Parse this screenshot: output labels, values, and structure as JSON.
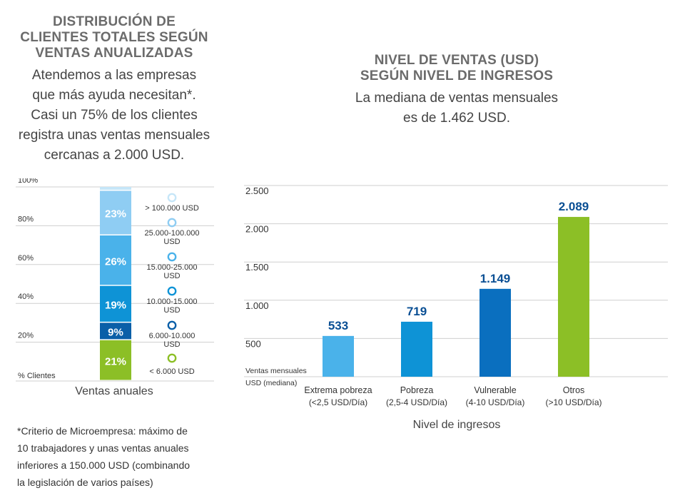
{
  "left": {
    "title_lines": [
      "DISTRIBUCIÓN DE",
      "CLIENTES TOTALES SEGÚN",
      "VENTAS ANUALIZADAS"
    ],
    "subtitle_lines": [
      "Atendemos a las empresas",
      "que más ayuda necesitan*.",
      "Casi un 75% de los clientes",
      "registra unas ventas mensuales",
      "cercanas a 2.000 USD."
    ],
    "xlabel": "Ventas anuales",
    "footnote_lines": [
      "*Criterio de Microempresa: máximo de",
      "10 trabajadores y unas ventas anuales",
      "inferiores a 150.000 USD (combinando",
      "la legislación de varios países)"
    ]
  },
  "right": {
    "title_lines": [
      "NIVEL DE VENTAS (USD)",
      "SEGÚN NIVEL DE INGRESOS"
    ],
    "subtitle_lines": [
      "La mediana de ventas mensuales",
      "es de 1.462 USD."
    ]
  },
  "chart_data": [
    {
      "type": "bar",
      "stacked": true,
      "xlabel": "Ventas anuales",
      "ylabel": "% Clientes",
      "y_ticks": [
        "20%",
        "40%",
        "60%",
        "80%",
        "100%"
      ],
      "ylim": [
        0,
        100
      ],
      "grid": true,
      "segments": [
        {
          "label": "< 6.000 USD",
          "value": 21,
          "display": "21%",
          "color": "#8cbf26"
        },
        {
          "label": "6.000-10.000 USD",
          "value": 9,
          "display": "9%",
          "color": "#0a5fa8"
        },
        {
          "label": "10.000-15.000 USD",
          "value": 19,
          "display": "19%",
          "color": "#0e93d6"
        },
        {
          "label": "15.000-25.000 USD",
          "value": 26,
          "display": "26%",
          "color": "#4ab2ea"
        },
        {
          "label": "25.000-100.000 USD",
          "value": 23,
          "display": "23%",
          "color": "#8fcdf3"
        },
        {
          "label": "> 100.000 USD",
          "value": 2,
          "display": "",
          "color": "#c6e6f8"
        }
      ]
    },
    {
      "type": "bar",
      "xlabel": "Nivel de ingresos",
      "ylabel": "Ventas mensuales USD (mediana)",
      "ylabel_lines": [
        "Ventas mensuales",
        "USD (mediana)"
      ],
      "y_ticks": [
        "500",
        "1.000",
        "1.500",
        "2.000",
        "2.500"
      ],
      "ylim": [
        0,
        2500
      ],
      "grid": true,
      "categories": [
        {
          "line1": "Extrema pobreza",
          "line2": "(<2,5 USD/Día)"
        },
        {
          "line1": "Pobreza",
          "line2": "(2,5-4 USD/Día)"
        },
        {
          "line1": "Vulnerable",
          "line2": "(4-10 USD/Día)"
        },
        {
          "line1": "Otros",
          "line2": "(>10 USD/Día)"
        }
      ],
      "values": [
        533,
        719,
        1149,
        2089
      ],
      "labels": [
        "533",
        "719",
        "1.149",
        "2.089"
      ],
      "colors": [
        "#4ab2ea",
        "#0e93d6",
        "#0a6fbf",
        "#8cbf26"
      ],
      "label_color": "#0a4f94"
    }
  ]
}
